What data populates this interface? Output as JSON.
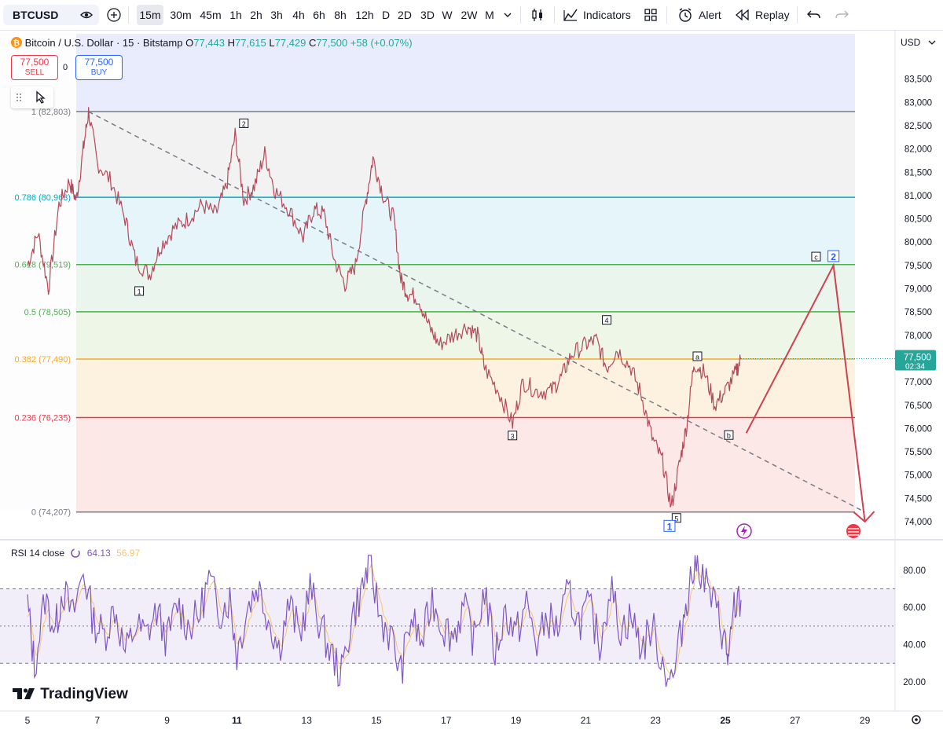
{
  "toolbar": {
    "symbol": "BTCUSD",
    "intervals": [
      "15m",
      "30m",
      "45m",
      "1h",
      "2h",
      "3h",
      "4h",
      "6h",
      "8h",
      "12h",
      "D",
      "2D",
      "3D",
      "W",
      "2W",
      "M"
    ],
    "active_interval": "15m",
    "indicators_label": "Indicators",
    "alert_label": "Alert",
    "replay_label": "Replay"
  },
  "header": {
    "title": "Bitcoin / U.S. Dollar · 15 · Bitstamp",
    "open_label": "O",
    "open": "77,443",
    "high_label": "H",
    "high": "77,615",
    "low_label": "L",
    "low": "77,429",
    "close_label": "C",
    "close": "77,500",
    "change": "+58 (+0.07%)"
  },
  "trade": {
    "sell_price": "77,500",
    "sell_label": "SELL",
    "buy_price": "77,500",
    "buy_label": "BUY",
    "spread": "0"
  },
  "currency": "USD",
  "price_tag": {
    "price": "77,500",
    "countdown": "02:34"
  },
  "rsi": {
    "label": "RSI 14 close",
    "value": "64.13",
    "ma_value": "56.97"
  },
  "logo_text": "TradingView",
  "colors": {
    "up": "#26a69a",
    "down": "#f23645",
    "candle": "#b34a5a",
    "rsi_line": "#7e57c2",
    "rsi_ma": "#f7c56f",
    "projection": "#d0404f"
  },
  "chart_data": {
    "type": "candlestick",
    "price_axis": {
      "range": [
        73700,
        84100
      ],
      "ticks": [
        "74,000",
        "74,500",
        "75,000",
        "75,500",
        "76,000",
        "76,500",
        "77,000",
        "77,500",
        "78,000",
        "78,500",
        "79,000",
        "79,500",
        "80,000",
        "80,500",
        "81,000",
        "81,500",
        "82,000",
        "82,500",
        "83,000",
        "83,500"
      ]
    },
    "time_axis": {
      "ticks": [
        {
          "label": "5",
          "bold": false
        },
        {
          "label": "7",
          "bold": false
        },
        {
          "label": "9",
          "bold": false
        },
        {
          "label": "11",
          "bold": true
        },
        {
          "label": "13",
          "bold": false
        },
        {
          "label": "15",
          "bold": false
        },
        {
          "label": "17",
          "bold": false
        },
        {
          "label": "19",
          "bold": false
        },
        {
          "label": "21",
          "bold": false
        },
        {
          "label": "23",
          "bold": false
        },
        {
          "label": "25",
          "bold": true
        },
        {
          "label": "27",
          "bold": false
        },
        {
          "label": "29",
          "bold": false
        }
      ]
    },
    "fib_levels": [
      {
        "label": "1 (82,803)",
        "value": 82803,
        "color": "#787b86"
      },
      {
        "label": "0.786 (80,963)",
        "value": 80963,
        "color": "#00acc1"
      },
      {
        "label": "0.618 (79,519)",
        "value": 79519,
        "color": "#4caf50"
      },
      {
        "label": "0.5 (78,505)",
        "value": 78505,
        "color": "#4caf50"
      },
      {
        "label": "0.382 (77,490)",
        "value": 77490,
        "color": "#f9a825"
      },
      {
        "label": "0.236 (76,235)",
        "value": 76235,
        "color": "#f23645"
      },
      {
        "label": "0 (74,207)",
        "value": 74207,
        "color": "#787b86"
      }
    ],
    "price_path": [
      [
        5,
        79500
      ],
      [
        5.3,
        80200
      ],
      [
        5.6,
        79000
      ],
      [
        5.9,
        80800
      ],
      [
        6.2,
        81300
      ],
      [
        6.4,
        80900
      ],
      [
        6.6,
        82000
      ],
      [
        6.75,
        82800
      ],
      [
        7.0,
        81700
      ],
      [
        7.4,
        81300
      ],
      [
        7.8,
        80500
      ],
      [
        8.1,
        79600
      ],
      [
        8.5,
        79300
      ],
      [
        8.8,
        79900
      ],
      [
        9.2,
        80300
      ],
      [
        9.6,
        80500
      ],
      [
        10.0,
        80800
      ],
      [
        10.4,
        80600
      ],
      [
        10.7,
        81200
      ],
      [
        10.95,
        82300
      ],
      [
        11.2,
        80900
      ],
      [
        11.5,
        81200
      ],
      [
        11.8,
        81900
      ],
      [
        12.1,
        81100
      ],
      [
        12.5,
        80700
      ],
      [
        12.9,
        80100
      ],
      [
        13.2,
        80700
      ],
      [
        13.5,
        80600
      ],
      [
        13.8,
        79600
      ],
      [
        14.1,
        79100
      ],
      [
        14.4,
        79500
      ],
      [
        14.7,
        80900
      ],
      [
        14.9,
        81800
      ],
      [
        15.2,
        81000
      ],
      [
        15.5,
        80500
      ],
      [
        15.7,
        79200
      ],
      [
        15.9,
        78900
      ],
      [
        16.2,
        78800
      ],
      [
        16.5,
        78200
      ],
      [
        16.8,
        77800
      ],
      [
        17.2,
        78000
      ],
      [
        17.6,
        78200
      ],
      [
        17.9,
        78000
      ],
      [
        18.1,
        77300
      ],
      [
        18.5,
        76800
      ],
      [
        18.9,
        76100
      ],
      [
        19.2,
        77000
      ],
      [
        19.6,
        76800
      ],
      [
        20.0,
        76800
      ],
      [
        20.3,
        77100
      ],
      [
        20.6,
        77600
      ],
      [
        21.0,
        77800
      ],
      [
        21.3,
        77900
      ],
      [
        21.6,
        77300
      ],
      [
        21.9,
        77700
      ],
      [
        22.3,
        77300
      ],
      [
        22.6,
        76700
      ],
      [
        22.9,
        75800
      ],
      [
        23.2,
        75300
      ],
      [
        23.45,
        74300
      ],
      [
        23.7,
        75300
      ],
      [
        23.9,
        76100
      ],
      [
        24.1,
        77400
      ],
      [
        24.4,
        77200
      ],
      [
        24.7,
        76500
      ],
      [
        25.0,
        76800
      ],
      [
        25.3,
        77200
      ],
      [
        25.45,
        77500
      ]
    ],
    "wave_labels": [
      {
        "label": "2",
        "x": 11.2,
        "y": 82550,
        "style": "small"
      },
      {
        "label": "1",
        "x": 8.2,
        "y": 78950,
        "style": "small"
      },
      {
        "label": "3",
        "x": 18.9,
        "y": 75850,
        "style": "small"
      },
      {
        "label": "4",
        "x": 21.6,
        "y": 78330,
        "style": "small"
      },
      {
        "label": "a",
        "x": 24.2,
        "y": 77550,
        "style": "small"
      },
      {
        "label": "b",
        "x": 25.1,
        "y": 75860,
        "style": "small"
      },
      {
        "label": "5",
        "x": 23.6,
        "y": 74080,
        "style": "small"
      },
      {
        "label": "1",
        "x": 23.4,
        "y": 73910,
        "style": "blue"
      },
      {
        "label": "c",
        "x": 27.6,
        "y": 79690,
        "style": "small"
      },
      {
        "label": "2",
        "x": 28.1,
        "y": 79700,
        "style": "blue"
      }
    ],
    "projection": [
      [
        25.6,
        75900
      ],
      [
        28.1,
        79500
      ],
      [
        29.0,
        74000
      ]
    ],
    "trendline": [
      [
        6.75,
        82800
      ],
      [
        29.0,
        74207
      ]
    ],
    "rsi": {
      "range": [
        10,
        90
      ],
      "ticks": [
        "20.00",
        "40.00",
        "60.00",
        "80.00"
      ],
      "bands": [
        30,
        50,
        70
      ],
      "path": [
        [
          5,
          62
        ],
        [
          5.2,
          28
        ],
        [
          5.5,
          65
        ],
        [
          5.8,
          48
        ],
        [
          6.0,
          70
        ],
        [
          6.3,
          55
        ],
        [
          6.6,
          80
        ],
        [
          6.9,
          52
        ],
        [
          7.2,
          45
        ],
        [
          7.5,
          60
        ],
        [
          7.8,
          35
        ],
        [
          8.1,
          50
        ],
        [
          8.4,
          45
        ],
        [
          8.7,
          58
        ],
        [
          9.0,
          42
        ],
        [
          9.3,
          62
        ],
        [
          9.6,
          50
        ],
        [
          9.9,
          55
        ],
        [
          10.2,
          75
        ],
        [
          10.5,
          58
        ],
        [
          10.8,
          65
        ],
        [
          11.0,
          35
        ],
        [
          11.3,
          60
        ],
        [
          11.6,
          72
        ],
        [
          11.9,
          55
        ],
        [
          12.2,
          38
        ],
        [
          12.5,
          62
        ],
        [
          12.8,
          45
        ],
        [
          13.1,
          70
        ],
        [
          13.4,
          50
        ],
        [
          13.7,
          35
        ],
        [
          14.0,
          24
        ],
        [
          14.3,
          55
        ],
        [
          14.6,
          70
        ],
        [
          14.8,
          85
        ],
        [
          15.1,
          55
        ],
        [
          15.4,
          45
        ],
        [
          15.7,
          25
        ],
        [
          16.0,
          55
        ],
        [
          16.3,
          40
        ],
        [
          16.6,
          65
        ],
        [
          16.9,
          50
        ],
        [
          17.2,
          45
        ],
        [
          17.5,
          60
        ],
        [
          17.8,
          42
        ],
        [
          18.1,
          70
        ],
        [
          18.4,
          35
        ],
        [
          18.7,
          58
        ],
        [
          19.0,
          45
        ],
        [
          19.3,
          62
        ],
        [
          19.6,
          40
        ],
        [
          19.9,
          55
        ],
        [
          20.2,
          48
        ],
        [
          20.5,
          68
        ],
        [
          20.8,
          52
        ],
        [
          21.1,
          60
        ],
        [
          21.4,
          40
        ],
        [
          21.7,
          72
        ],
        [
          22.0,
          48
        ],
        [
          22.3,
          55
        ],
        [
          22.6,
          38
        ],
        [
          22.9,
          50
        ],
        [
          23.2,
          30
        ],
        [
          23.5,
          20
        ],
        [
          23.8,
          55
        ],
        [
          24.0,
          75
        ],
        [
          24.2,
          86
        ],
        [
          24.5,
          70
        ],
        [
          24.8,
          55
        ],
        [
          25.0,
          40
        ],
        [
          25.1,
          30
        ],
        [
          25.25,
          60
        ],
        [
          25.45,
          64
        ]
      ]
    }
  }
}
